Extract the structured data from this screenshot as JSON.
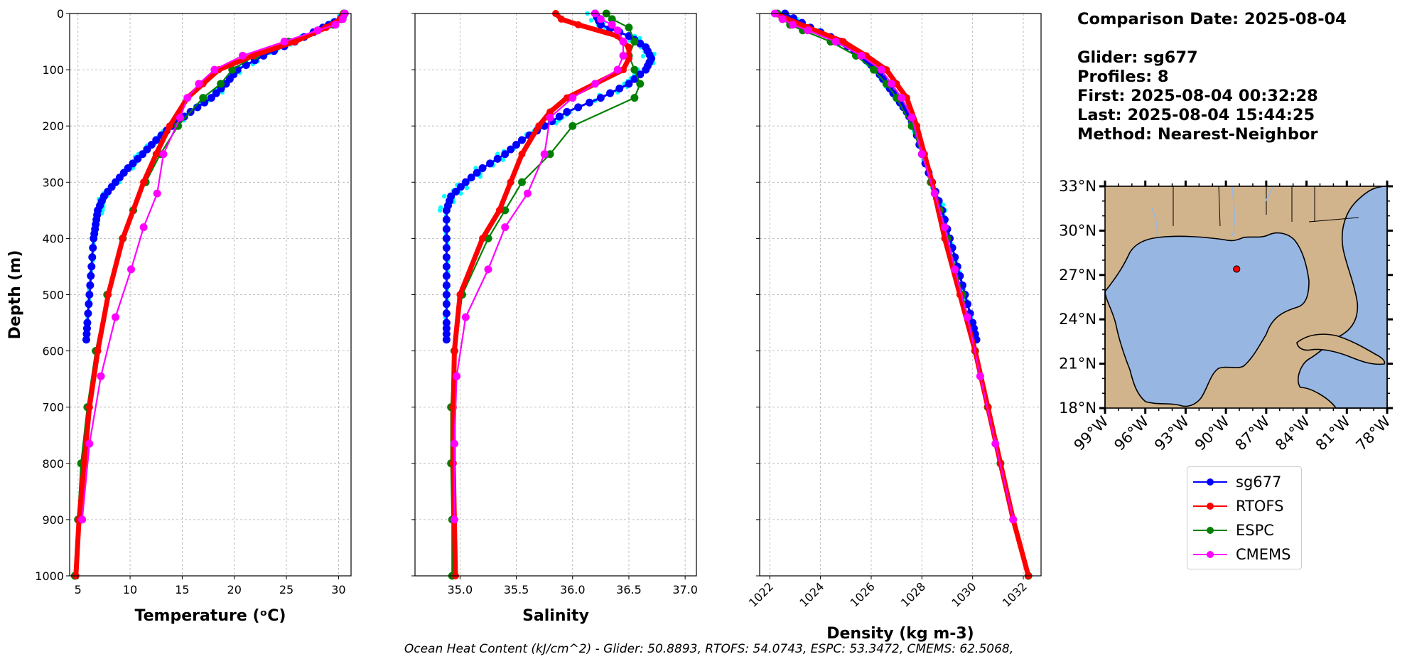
{
  "info": {
    "comparison_date": "Comparison Date: 2025-08-04",
    "glider": "Glider: sg677",
    "profiles": "Profiles: 8",
    "first": "First: 2025-08-04 00:32:28",
    "last": "Last: 2025-08-04 15:44:25",
    "method": "Method: Nearest-Neighbor"
  },
  "footer": "Ocean Heat Content (kJ/cm^2) - Glider: 50.8893,  RTOFS: 54.0743,  ESPC: 53.3472,  CMEMS: 62.5068,",
  "colors": {
    "sg677": "#0000ff",
    "sg677_raw": "#00ffff",
    "RTOFS": "#ff0000",
    "ESPC": "#008000",
    "CMEMS": "#ff00ff",
    "land": "#d2b48c",
    "ocean": "#98b6e2"
  },
  "legend": [
    {
      "name": "sg677",
      "color": "#0000ff"
    },
    {
      "name": "RTOFS",
      "color": "#ff0000"
    },
    {
      "name": "ESPC",
      "color": "#008000"
    },
    {
      "name": "CMEMS",
      "color": "#ff00ff"
    }
  ],
  "map": {
    "lat_ticks": [
      "33°N",
      "30°N",
      "27°N",
      "24°N",
      "21°N",
      "18°N"
    ],
    "lon_ticks": [
      "99°W",
      "96°W",
      "93°W",
      "90°W",
      "87°W",
      "84°W",
      "81°W",
      "78°W"
    ],
    "lon_range": [
      -99,
      -78
    ],
    "lat_range": [
      18,
      33
    ],
    "glider_position": {
      "lon": -89.2,
      "lat": 27.4
    }
  },
  "chart_data": [
    {
      "type": "line",
      "title": "",
      "xlabel": "Temperature (ᵒC)",
      "ylabel": "Depth (m)",
      "xlim": [
        4.2,
        31.2
      ],
      "ylim": [
        1000,
        0
      ],
      "xticks": [
        5,
        10,
        15,
        20,
        25,
        30
      ],
      "yticks": [
        0,
        100,
        200,
        300,
        400,
        500,
        600,
        700,
        800,
        900,
        1000
      ],
      "grid": true,
      "series": [
        {
          "name": "sg677",
          "depth": [
            0,
            10,
            25,
            50,
            75,
            100,
            125,
            150,
            175,
            200,
            225,
            250,
            275,
            300,
            325,
            350,
            375,
            400,
            450,
            500,
            550,
            580
          ],
          "values": [
            30.6,
            30.2,
            28.5,
            25.8,
            22.8,
            20.3,
            19.2,
            17.8,
            15.8,
            14.0,
            12.5,
            11.2,
            9.8,
            8.6,
            7.5,
            6.9,
            6.7,
            6.5,
            6.3,
            6.1,
            5.9,
            5.8
          ]
        },
        {
          "name": "RTOFS",
          "depth": [
            0,
            10,
            25,
            50,
            75,
            100,
            125,
            150,
            200,
            250,
            300,
            400,
            500,
            600,
            700,
            800,
            900,
            1000
          ],
          "values": [
            30.5,
            30.2,
            28.8,
            25.8,
            21.8,
            18.5,
            17.0,
            15.5,
            13.8,
            12.5,
            11.3,
            9.3,
            7.9,
            6.9,
            6.1,
            5.6,
            5.1,
            4.8
          ]
        },
        {
          "name": "ESPC",
          "depth": [
            0,
            10,
            20,
            30,
            50,
            75,
            100,
            125,
            150,
            200,
            250,
            300,
            350,
            400,
            500,
            600,
            700,
            800,
            900,
            1000
          ],
          "values": [
            30.5,
            30.3,
            29.5,
            28.0,
            25.2,
            22.0,
            19.8,
            18.7,
            17.0,
            14.6,
            12.9,
            11.5,
            10.3,
            9.3,
            7.8,
            6.7,
            5.9,
            5.3,
            5.0,
            4.7
          ]
        },
        {
          "name": "CMEMS",
          "depth": [
            0,
            10,
            20,
            30,
            50,
            75,
            100,
            125,
            150,
            185,
            250,
            320,
            380,
            455,
            540,
            645,
            765,
            900
          ],
          "values": [
            30.6,
            30.4,
            29.7,
            28.0,
            24.8,
            20.8,
            18.1,
            16.6,
            15.5,
            14.8,
            13.2,
            12.6,
            11.3,
            10.1,
            8.6,
            7.2,
            6.1,
            5.4
          ]
        }
      ]
    },
    {
      "type": "line",
      "title": "",
      "xlabel": "Salinity",
      "ylabel": "",
      "xlim": [
        34.6,
        37.1
      ],
      "ylim": [
        1000,
        0
      ],
      "xticks": [
        35.0,
        35.5,
        36.0,
        36.5,
        37.0
      ],
      "grid": true,
      "series": [
        {
          "name": "sg677",
          "depth": [
            0,
            20,
            40,
            60,
            80,
            100,
            125,
            150,
            175,
            200,
            225,
            250,
            275,
            300,
            325,
            350,
            400,
            450,
            500,
            550,
            580
          ],
          "values": [
            36.2,
            36.25,
            36.5,
            36.65,
            36.7,
            36.65,
            36.5,
            36.25,
            35.95,
            35.75,
            35.55,
            35.4,
            35.2,
            35.05,
            34.92,
            34.88,
            34.88,
            34.88,
            34.88,
            34.88,
            34.88
          ]
        },
        {
          "name": "RTOFS",
          "depth": [
            0,
            10,
            20,
            40,
            60,
            80,
            100,
            125,
            150,
            175,
            200,
            250,
            300,
            350,
            400,
            500,
            600,
            700,
            800,
            900,
            1000
          ],
          "values": [
            35.85,
            35.9,
            36.05,
            36.4,
            36.5,
            36.5,
            36.45,
            36.2,
            35.95,
            35.8,
            35.7,
            35.55,
            35.45,
            35.35,
            35.2,
            35.0,
            34.95,
            34.94,
            34.94,
            34.95,
            34.96
          ]
        },
        {
          "name": "ESPC",
          "depth": [
            0,
            10,
            25,
            50,
            75,
            100,
            125,
            150,
            200,
            250,
            300,
            350,
            400,
            500,
            600,
            700,
            800,
            900,
            1000
          ],
          "values": [
            36.3,
            36.35,
            36.5,
            36.55,
            36.5,
            36.55,
            36.6,
            36.55,
            36.0,
            35.8,
            35.55,
            35.4,
            35.25,
            35.02,
            34.95,
            34.92,
            34.92,
            34.93,
            34.93
          ]
        },
        {
          "name": "CMEMS",
          "depth": [
            0,
            10,
            20,
            30,
            50,
            75,
            100,
            125,
            150,
            185,
            250,
            320,
            380,
            455,
            540,
            645,
            765,
            900
          ],
          "values": [
            36.2,
            36.25,
            36.35,
            36.4,
            36.45,
            36.45,
            36.4,
            36.2,
            36.0,
            35.8,
            35.75,
            35.6,
            35.4,
            35.25,
            35.05,
            34.97,
            34.95,
            34.95
          ]
        }
      ]
    },
    {
      "type": "line",
      "title": "",
      "xlabel": "Density (kg m-3)",
      "ylabel": "",
      "xlim": [
        1021.6,
        1032.7
      ],
      "ylim": [
        1000,
        0
      ],
      "xticks": [
        1022,
        1024,
        1026,
        1028,
        1030,
        1032
      ],
      "grid": true,
      "series": [
        {
          "name": "sg677",
          "depth": [
            0,
            25,
            50,
            75,
            100,
            125,
            150,
            175,
            200,
            250,
            300,
            350,
            400,
            450,
            500,
            550,
            580
          ],
          "values": [
            1022.6,
            1023.6,
            1024.8,
            1025.6,
            1026.2,
            1026.6,
            1027.0,
            1027.4,
            1027.7,
            1028.0,
            1028.4,
            1028.8,
            1029.1,
            1029.4,
            1029.7,
            1030.0,
            1030.15
          ]
        },
        {
          "name": "RTOFS",
          "depth": [
            0,
            25,
            50,
            75,
            100,
            125,
            150,
            200,
            250,
            300,
            400,
            500,
            600,
            700,
            800,
            900,
            1000
          ],
          "values": [
            1022.2,
            1023.5,
            1024.9,
            1025.8,
            1026.6,
            1027.0,
            1027.4,
            1027.8,
            1028.1,
            1028.4,
            1028.9,
            1029.5,
            1030.1,
            1030.6,
            1031.1,
            1031.6,
            1032.2
          ]
        },
        {
          "name": "ESPC",
          "depth": [
            0,
            10,
            20,
            30,
            50,
            75,
            100,
            125,
            150,
            200,
            250,
            300,
            350,
            400,
            500,
            600,
            700,
            800,
            900,
            1000
          ],
          "values": [
            1022.3,
            1022.5,
            1022.8,
            1023.3,
            1024.4,
            1025.4,
            1026.1,
            1026.6,
            1027.0,
            1027.6,
            1028.0,
            1028.35,
            1028.7,
            1029.0,
            1029.6,
            1030.1,
            1030.6,
            1031.1,
            1031.6,
            1032.2
          ]
        },
        {
          "name": "CMEMS",
          "depth": [
            0,
            10,
            20,
            30,
            50,
            75,
            100,
            125,
            150,
            185,
            250,
            320,
            380,
            455,
            540,
            645,
            765,
            900
          ],
          "values": [
            1022.2,
            1022.5,
            1022.9,
            1023.5,
            1024.6,
            1025.6,
            1026.4,
            1026.8,
            1027.2,
            1027.6,
            1028.0,
            1028.5,
            1028.9,
            1029.3,
            1029.8,
            1030.3,
            1030.9,
            1031.6
          ]
        }
      ]
    }
  ]
}
